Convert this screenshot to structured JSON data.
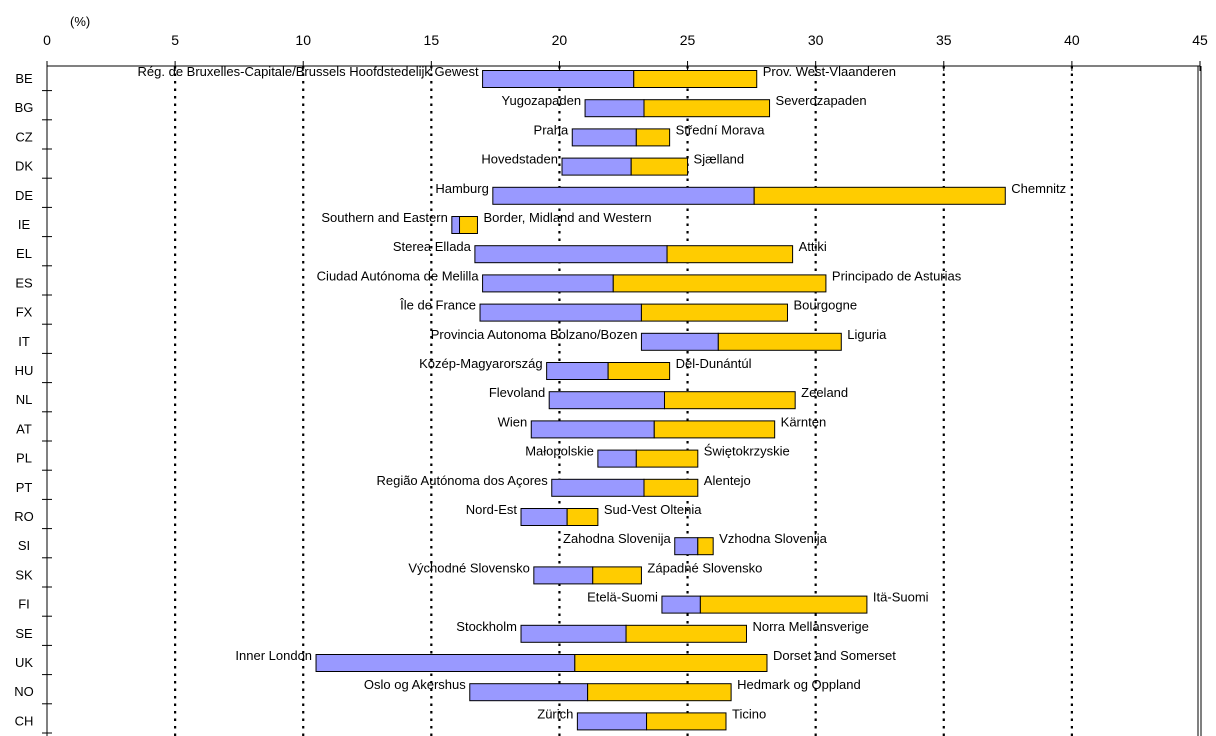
{
  "chart_data": {
    "type": "bar",
    "orientation": "horizontal",
    "subtype": "range-split",
    "unit_label": "(%)",
    "xlim": [
      0,
      45
    ],
    "xticks": [
      0,
      5,
      10,
      15,
      20,
      25,
      30,
      35,
      40,
      45
    ],
    "grid": "vertical-dotted",
    "colors": {
      "low_segment": "#9999ff",
      "high_segment": "#ffcc00",
      "edge": "#000000"
    },
    "rows": [
      {
        "country": "BE",
        "min": 17.0,
        "avg": 22.9,
        "max": 27.7,
        "min_region": "Rég. de Bruxelles-Capitale/Brussels Hoofdstedelijk Gewest",
        "max_region": "Prov. West-Vlaanderen"
      },
      {
        "country": "BG",
        "min": 21.0,
        "avg": 23.3,
        "max": 28.2,
        "min_region": "Yugozapaden",
        "max_region": "Severozapaden"
      },
      {
        "country": "CZ",
        "min": 20.5,
        "avg": 23.0,
        "max": 24.3,
        "min_region": "Praha",
        "max_region": "Střední Morava"
      },
      {
        "country": "DK",
        "min": 20.1,
        "avg": 22.8,
        "max": 25.0,
        "min_region": "Hovedstaden",
        "max_region": "Sjælland"
      },
      {
        "country": "DE",
        "min": 17.4,
        "avg": 27.6,
        "max": 37.4,
        "min_region": "Hamburg",
        "max_region": "Chemnitz"
      },
      {
        "country": "IE",
        "min": 15.8,
        "avg": 16.1,
        "max": 16.8,
        "min_region": "Southern and Eastern",
        "max_region": "Border, Midland and Western"
      },
      {
        "country": "EL",
        "min": 16.7,
        "avg": 24.2,
        "max": 29.1,
        "min_region": "Sterea Ellada",
        "max_region": "Attiki"
      },
      {
        "country": "ES",
        "min": 17.0,
        "avg": 22.1,
        "max": 30.4,
        "min_region": "Ciudad Autónoma de Melilla",
        "max_region": "Principado de Asturias"
      },
      {
        "country": "FX",
        "min": 16.9,
        "avg": 23.2,
        "max": 28.9,
        "min_region": "Île de France",
        "max_region": "Bourgogne"
      },
      {
        "country": "IT",
        "min": 23.2,
        "avg": 26.2,
        "max": 31.0,
        "min_region": "Provincia Autonoma Bolzano/Bozen",
        "max_region": "Liguria"
      },
      {
        "country": "HU",
        "min": 19.5,
        "avg": 21.9,
        "max": 24.3,
        "min_region": "Közép-Magyarország",
        "max_region": "Dél-Dunántúl"
      },
      {
        "country": "NL",
        "min": 19.6,
        "avg": 24.1,
        "max": 29.2,
        "min_region": "Flevoland",
        "max_region": "Zeeland"
      },
      {
        "country": "AT",
        "min": 18.9,
        "avg": 23.7,
        "max": 28.4,
        "min_region": "Wien",
        "max_region": "Kärnten"
      },
      {
        "country": "PL",
        "min": 21.5,
        "avg": 23.0,
        "max": 25.4,
        "min_region": "Małopolskie",
        "max_region": "Świętokrzyskie"
      },
      {
        "country": "PT",
        "min": 19.7,
        "avg": 23.3,
        "max": 25.4,
        "min_region": "Região Autónoma dos Açores",
        "max_region": "Alentejo"
      },
      {
        "country": "RO",
        "min": 18.5,
        "avg": 20.3,
        "max": 21.5,
        "min_region": "Nord-Est",
        "max_region": "Sud-Vest Oltenia"
      },
      {
        "country": "SI",
        "min": 24.5,
        "avg": 25.4,
        "max": 26.0,
        "min_region": "Zahodna Slovenija",
        "max_region": "Vzhodna Slovenija"
      },
      {
        "country": "SK",
        "min": 19.0,
        "avg": 21.3,
        "max": 23.2,
        "min_region": "Východné Slovensko",
        "max_region": "Západné Slovensko"
      },
      {
        "country": "FI",
        "min": 24.0,
        "avg": 25.5,
        "max": 32.0,
        "min_region": "Etelä-Suomi",
        "max_region": "Itä-Suomi"
      },
      {
        "country": "SE",
        "min": 18.5,
        "avg": 22.6,
        "max": 27.3,
        "min_region": "Stockholm",
        "max_region": "Norra Mellansverige"
      },
      {
        "country": "UK",
        "min": 10.5,
        "avg": 20.6,
        "max": 28.1,
        "min_region": "Inner London",
        "max_region": "Dorset and Somerset"
      },
      {
        "country": "NO",
        "min": 16.5,
        "avg": 21.1,
        "max": 26.7,
        "min_region": "Oslo og Akershus",
        "max_region": "Hedmark og Oppland"
      },
      {
        "country": "CH",
        "min": 20.7,
        "avg": 23.4,
        "max": 26.5,
        "min_region": "Zürich",
        "max_region": "Ticino"
      }
    ]
  }
}
